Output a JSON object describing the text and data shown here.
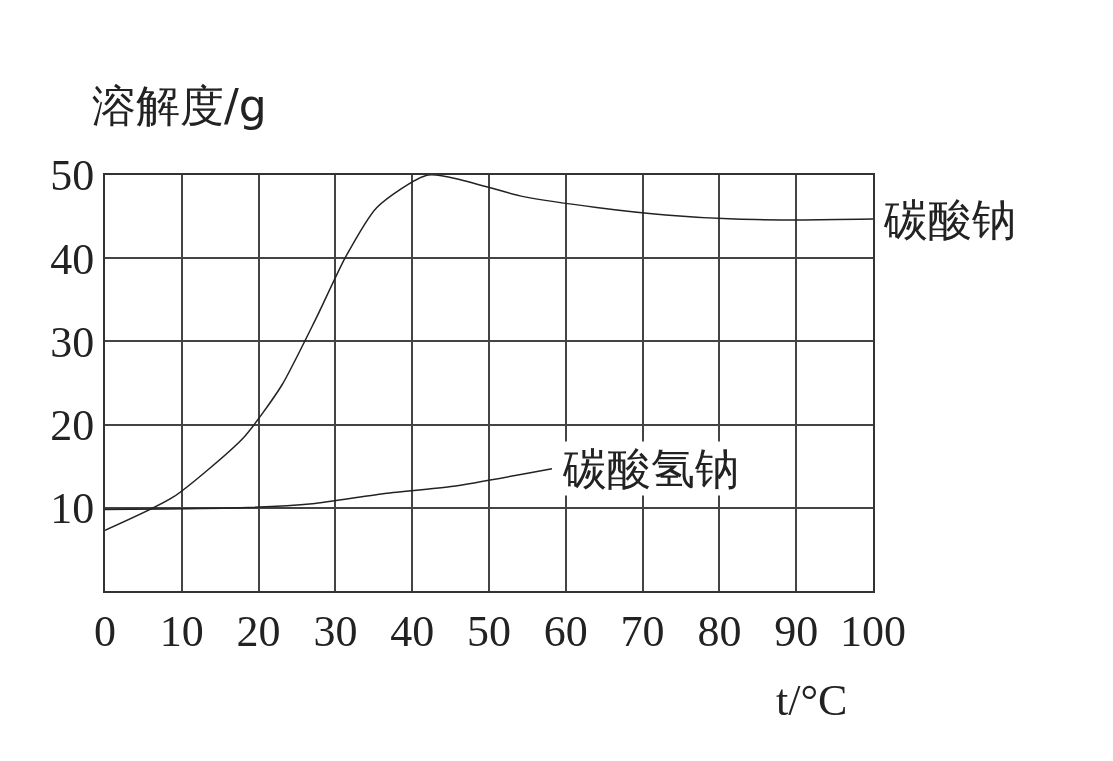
{
  "chart_data": {
    "type": "line",
    "ylabel": "溶解度/g",
    "xlabel": "t/°C",
    "xlim": [
      0,
      100
    ],
    "xticks": [
      0,
      10,
      20,
      30,
      40,
      50,
      60,
      70,
      80,
      90,
      100
    ],
    "ylim": [
      0,
      50
    ],
    "yticks": [
      10,
      20,
      30,
      40,
      50
    ],
    "grid": true,
    "legend": false,
    "series": [
      {
        "name": "碳酸钠",
        "color": "#222222",
        "x": [
          0,
          8.9,
          18,
          23,
          27.5,
          31.3,
          35.4,
          42.1,
          54.5,
          64,
          73,
          82,
          91,
          100
        ],
        "values": [
          7.3,
          11.3,
          18.4,
          24.7,
          32.8,
          40.1,
          46.1,
          50,
          47.4,
          46.1,
          45.2,
          44.7,
          44.6,
          44.7
        ]
      },
      {
        "name": "碳酸氢钠",
        "color": "#222222",
        "x": [
          0,
          17.6,
          27,
          36.2,
          45.4,
          58.2
        ],
        "values": [
          9.8,
          10.0,
          10.5,
          11.7,
          12.6,
          14.7
        ]
      }
    ]
  }
}
